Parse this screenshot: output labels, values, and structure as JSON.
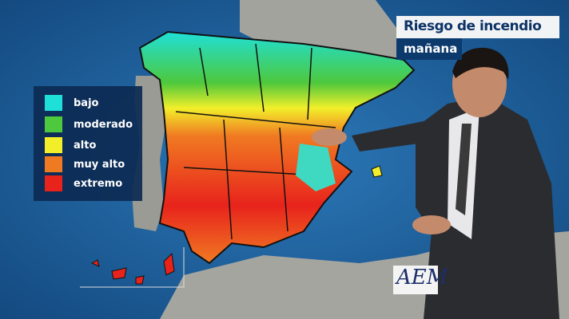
{
  "header": {
    "title": "Riesgo de incendio",
    "subtitle": "mañana"
  },
  "legend": {
    "items": [
      {
        "label": "bajo",
        "color": "#1fe0d8"
      },
      {
        "label": "moderado",
        "color": "#4ec83c"
      },
      {
        "label": "alto",
        "color": "#f2ef2a"
      },
      {
        "label": "muy alto",
        "color": "#f07a22"
      },
      {
        "label": "extremo",
        "color": "#e8231c"
      }
    ]
  },
  "logo": {
    "text": "AEM"
  },
  "colors": {
    "sea": "#1d5f9a",
    "land": "#9a9a96",
    "suit": "#2a2c30"
  }
}
